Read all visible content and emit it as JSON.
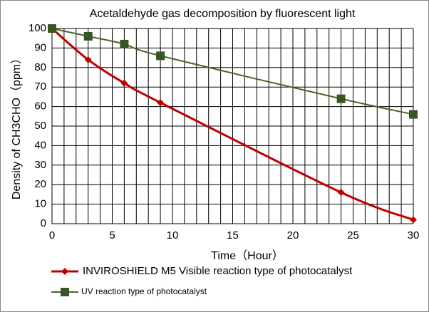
{
  "chart_data": {
    "type": "line",
    "title": "Acetaldehyde gas decomposition by fluorescent light",
    "x_label": "Time（Hour）",
    "y_label": "Density of CH3CHO（ppm）",
    "x": [
      0,
      3,
      6,
      9,
      24,
      30
    ],
    "series": [
      {
        "name": "INVIROSHIELD M5 Visible reaction type of photocatalyst",
        "color": "#c00000",
        "marker": "diamond",
        "values": [
          100,
          84,
          72,
          62,
          16,
          2
        ]
      },
      {
        "name": "UV reaction type of photocatalyst",
        "color": "#4f6228",
        "marker": "square",
        "values": [
          100,
          96,
          92,
          86,
          64,
          56
        ]
      }
    ],
    "xlim": [
      0,
      30
    ],
    "xticks": [
      0,
      5,
      10,
      15,
      20,
      25,
      30
    ],
    "xgrid": [
      0,
      1,
      2,
      3,
      4,
      5,
      6,
      7,
      8,
      9,
      10,
      11,
      12,
      13,
      14,
      15,
      16,
      17,
      18,
      19,
      20,
      21,
      22,
      23,
      24,
      25,
      26,
      27,
      28,
      29,
      30
    ],
    "ylim": [
      0,
      100
    ],
    "yticks": [
      0,
      10,
      20,
      30,
      40,
      50,
      60,
      70,
      80,
      90,
      100
    ],
    "grid": true,
    "legend": "bottom"
  }
}
